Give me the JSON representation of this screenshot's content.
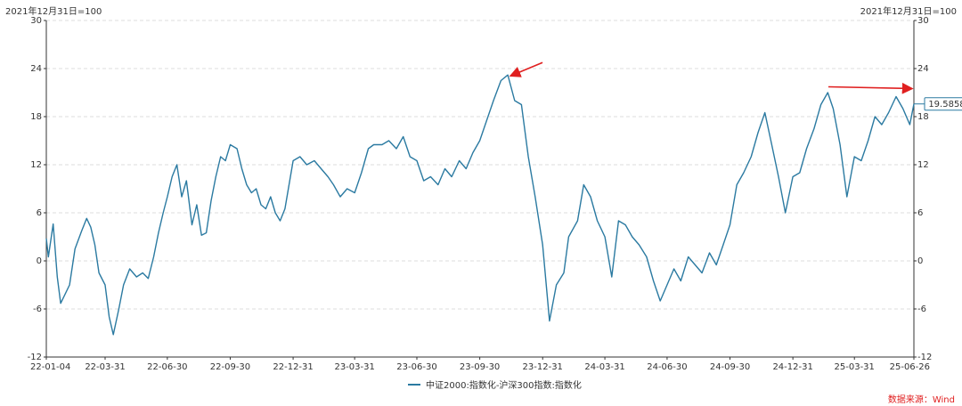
{
  "chart_data": {
    "type": "line",
    "left_axis_note": "2021年12月31日=100",
    "right_axis_note": "2021年12月31日=100",
    "ylim": [
      -12,
      30
    ],
    "yticks": [
      "30",
      "24",
      "18",
      "12",
      "6",
      "0",
      "-6",
      "-12"
    ],
    "x_tick_labels": [
      "22-01-04",
      "22-03-31",
      "22-06-30",
      "22-09-30",
      "22-12-31",
      "23-03-31",
      "23-06-30",
      "23-09-30",
      "23-12-31",
      "24-03-31",
      "24-06-30",
      "24-09-30",
      "24-12-31",
      "25-03-31",
      "25-06-26"
    ],
    "grid": true,
    "legend_position": "bottom-center",
    "series": [
      {
        "name": "中证2000:指数化-沪深300指数:指数化",
        "color": "#2b7aa1",
        "points": [
          [
            "22-01-04",
            2.8
          ],
          [
            "22-01-07",
            0.5
          ],
          [
            "22-01-14",
            4.6
          ],
          [
            "22-01-20",
            -2.0
          ],
          [
            "22-01-25",
            -5.3
          ],
          [
            "22-02-07",
            -3.0
          ],
          [
            "22-02-15",
            1.5
          ],
          [
            "22-02-25",
            3.8
          ],
          [
            "22-03-04",
            5.3
          ],
          [
            "22-03-10",
            4.2
          ],
          [
            "22-03-16",
            2.0
          ],
          [
            "22-03-22",
            -1.5
          ],
          [
            "22-03-31",
            -3.0
          ],
          [
            "22-04-06",
            -7.0
          ],
          [
            "22-04-12",
            -9.2
          ],
          [
            "22-04-20",
            -6.0
          ],
          [
            "22-04-27",
            -3.0
          ],
          [
            "22-05-06",
            -1.0
          ],
          [
            "22-05-16",
            -2.0
          ],
          [
            "22-05-25",
            -1.5
          ],
          [
            "22-06-02",
            -2.2
          ],
          [
            "22-06-10",
            0.5
          ],
          [
            "22-06-17",
            3.5
          ],
          [
            "22-06-24",
            6.0
          ],
          [
            "22-06-30",
            8.0
          ],
          [
            "22-07-07",
            10.5
          ],
          [
            "22-07-14",
            12.0
          ],
          [
            "22-07-21",
            8.0
          ],
          [
            "22-07-28",
            10.0
          ],
          [
            "22-08-05",
            4.5
          ],
          [
            "22-08-12",
            7.0
          ],
          [
            "22-08-19",
            3.2
          ],
          [
            "22-08-26",
            3.5
          ],
          [
            "22-09-02",
            7.5
          ],
          [
            "22-09-09",
            10.5
          ],
          [
            "22-09-16",
            13.0
          ],
          [
            "22-09-23",
            12.5
          ],
          [
            "22-09-30",
            14.5
          ],
          [
            "22-10-10",
            14.0
          ],
          [
            "22-10-17",
            11.5
          ],
          [
            "22-10-24",
            9.5
          ],
          [
            "22-10-31",
            8.5
          ],
          [
            "22-11-07",
            9.0
          ],
          [
            "22-11-14",
            7.0
          ],
          [
            "22-11-21",
            6.5
          ],
          [
            "22-11-28",
            8.0
          ],
          [
            "22-12-05",
            6.0
          ],
          [
            "22-12-12",
            5.0
          ],
          [
            "22-12-19",
            6.5
          ],
          [
            "22-12-31",
            12.5
          ],
          [
            "23-01-10",
            13.0
          ],
          [
            "23-01-20",
            12.0
          ],
          [
            "23-01-31",
            12.5
          ],
          [
            "23-02-10",
            11.5
          ],
          [
            "23-02-20",
            10.5
          ],
          [
            "23-02-28",
            9.5
          ],
          [
            "23-03-10",
            8.0
          ],
          [
            "23-03-20",
            9.0
          ],
          [
            "23-03-31",
            8.5
          ],
          [
            "23-04-10",
            11.0
          ],
          [
            "23-04-20",
            14.0
          ],
          [
            "23-04-28",
            14.5
          ],
          [
            "23-05-10",
            14.5
          ],
          [
            "23-05-20",
            15.0
          ],
          [
            "23-05-31",
            14.0
          ],
          [
            "23-06-10",
            15.5
          ],
          [
            "23-06-20",
            13.0
          ],
          [
            "23-06-30",
            12.5
          ],
          [
            "23-07-10",
            10.0
          ],
          [
            "23-07-20",
            10.5
          ],
          [
            "23-07-31",
            9.5
          ],
          [
            "23-08-10",
            11.5
          ],
          [
            "23-08-20",
            10.5
          ],
          [
            "23-08-31",
            12.5
          ],
          [
            "23-09-10",
            11.5
          ],
          [
            "23-09-20",
            13.5
          ],
          [
            "23-09-30",
            15.0
          ],
          [
            "23-10-10",
            17.5
          ],
          [
            "23-10-20",
            20.0
          ],
          [
            "23-10-31",
            22.5
          ],
          [
            "23-11-10",
            23.2
          ],
          [
            "23-11-20",
            20.0
          ],
          [
            "23-11-30",
            19.5
          ],
          [
            "23-12-10",
            13.0
          ],
          [
            "23-12-20",
            8.0
          ],
          [
            "23-12-31",
            2.0
          ],
          [
            "24-01-10",
            -7.5
          ],
          [
            "24-01-20",
            -3.0
          ],
          [
            "24-01-31",
            -1.5
          ],
          [
            "24-02-07",
            3.0
          ],
          [
            "24-02-20",
            5.0
          ],
          [
            "24-02-29",
            9.5
          ],
          [
            "24-03-10",
            8.0
          ],
          [
            "24-03-20",
            5.0
          ],
          [
            "24-03-31",
            3.0
          ],
          [
            "24-04-10",
            -2.0
          ],
          [
            "24-04-20",
            5.0
          ],
          [
            "24-04-30",
            4.5
          ],
          [
            "24-05-10",
            3.0
          ],
          [
            "24-05-20",
            2.0
          ],
          [
            "24-05-31",
            0.5
          ],
          [
            "24-06-10",
            -2.5
          ],
          [
            "24-06-20",
            -5.0
          ],
          [
            "24-06-30",
            -3.0
          ],
          [
            "24-07-10",
            -1.0
          ],
          [
            "24-07-20",
            -2.5
          ],
          [
            "24-07-31",
            0.5
          ],
          [
            "24-08-10",
            -0.5
          ],
          [
            "24-08-20",
            -1.5
          ],
          [
            "24-08-31",
            1.0
          ],
          [
            "24-09-10",
            -0.5
          ],
          [
            "24-09-20",
            2.0
          ],
          [
            "24-09-30",
            4.5
          ],
          [
            "24-10-10",
            9.5
          ],
          [
            "24-10-20",
            11.0
          ],
          [
            "24-10-31",
            13.0
          ],
          [
            "24-11-10",
            16.0
          ],
          [
            "24-11-20",
            18.5
          ],
          [
            "24-11-30",
            14.5
          ],
          [
            "24-12-10",
            10.5
          ],
          [
            "24-12-20",
            6.0
          ],
          [
            "24-12-31",
            10.5
          ],
          [
            "25-01-10",
            11.0
          ],
          [
            "25-01-20",
            14.0
          ],
          [
            "25-01-31",
            16.5
          ],
          [
            "25-02-10",
            19.5
          ],
          [
            "25-02-20",
            21.0
          ],
          [
            "25-02-28",
            19.0
          ],
          [
            "25-03-10",
            14.5
          ],
          [
            "25-03-20",
            8.0
          ],
          [
            "25-03-31",
            13.0
          ],
          [
            "25-04-10",
            12.5
          ],
          [
            "25-04-20",
            15.0
          ],
          [
            "25-04-30",
            18.0
          ],
          [
            "25-05-10",
            17.0
          ],
          [
            "25-05-20",
            18.5
          ],
          [
            "25-05-31",
            20.5
          ],
          [
            "25-06-10",
            19.0
          ],
          [
            "25-06-20",
            17.0
          ],
          [
            "25-06-26",
            19.5858
          ]
        ]
      }
    ],
    "last_value_label": "19.5858",
    "annotations": [
      {
        "type": "arrow",
        "color": "#e02020",
        "points_to": [
          "23-11-10",
          23.2
        ]
      },
      {
        "type": "arrow",
        "color": "#e02020",
        "points_to": [
          "25-06-26",
          21.5
        ]
      }
    ]
  },
  "source": {
    "text": "数据来源：Wind",
    "color": "#e02020"
  }
}
